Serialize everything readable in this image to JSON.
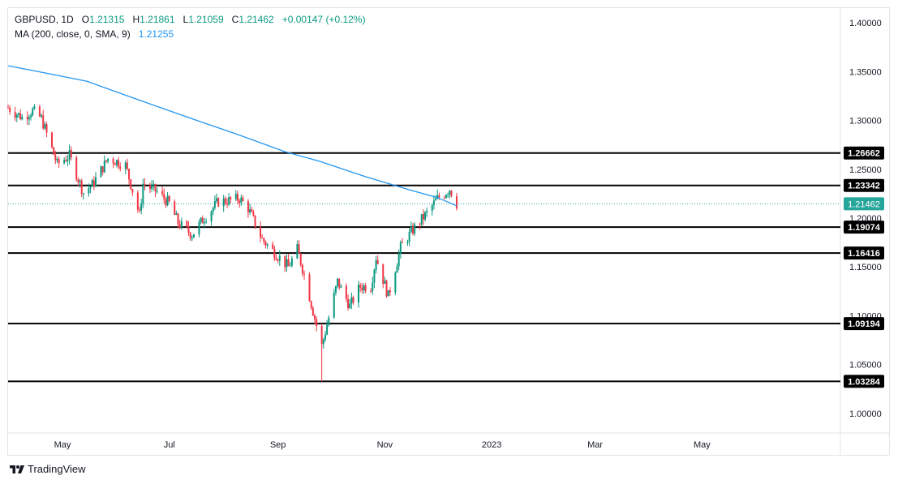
{
  "legend": {
    "symbol": "GBPUSD",
    "interval": "1D",
    "open_label": "O",
    "open": "1.21315",
    "high_label": "H",
    "high": "1.21861",
    "low_label": "L",
    "low": "1.21059",
    "close_label": "C",
    "close": "1.21462",
    "change": "+0.00147 (+0.12%)",
    "ma_label": "MA (200, close, 0, SMA, 9)",
    "ma_value": "1.21255"
  },
  "brand": {
    "name": "TradingView",
    "icon": "tradingview-logo-icon"
  },
  "colors": {
    "up": "#089981",
    "down": "#f23645",
    "ma": "#2196f3",
    "level": "#000000",
    "last": "#26a69a"
  },
  "chart_data": {
    "type": "candlestick",
    "y_range": [
      0.98,
      1.415
    ],
    "x_range": [
      "2022-03-31",
      "2023-07-19"
    ],
    "yticks": [
      "1.00000",
      "1.05000",
      "1.10000",
      "1.15000",
      "1.20000",
      "1.25000",
      "1.30000",
      "1.35000",
      "1.40000"
    ],
    "ytick_values": [
      1.0,
      1.05,
      1.1,
      1.15,
      1.2,
      1.25,
      1.3,
      1.35,
      1.4
    ],
    "xticks": [
      {
        "label": "May",
        "date": "2022-05-01"
      },
      {
        "label": "Jul",
        "date": "2022-07-01"
      },
      {
        "label": "Sep",
        "date": "2022-09-01"
      },
      {
        "label": "Nov",
        "date": "2022-11-01"
      },
      {
        "label": "2023",
        "date": "2023-01-01"
      },
      {
        "label": "Mar",
        "date": "2023-03-01"
      },
      {
        "label": "May",
        "date": "2023-05-01"
      }
    ],
    "levels": [
      {
        "label": "1.26662",
        "value": 1.26662
      },
      {
        "label": "1.23342",
        "value": 1.23342
      },
      {
        "label": "1.19074",
        "value": 1.19074
      },
      {
        "label": "1.16416",
        "value": 1.16416
      },
      {
        "label": "1.09194",
        "value": 1.09194
      },
      {
        "label": "1.03284",
        "value": 1.03284
      }
    ],
    "last_price": {
      "label": "1.21462",
      "value": 1.21462
    },
    "price_anchors": [
      [
        "2022-03-31",
        1.313
      ],
      [
        "2022-04-08",
        1.303
      ],
      [
        "2022-04-14",
        1.31
      ],
      [
        "2022-04-19",
        1.302
      ],
      [
        "2022-04-28",
        1.255
      ],
      [
        "2022-05-05",
        1.264
      ],
      [
        "2022-05-13",
        1.226
      ],
      [
        "2022-05-18",
        1.234
      ],
      [
        "2022-05-27",
        1.261
      ],
      [
        "2022-06-01",
        1.258
      ],
      [
        "2022-06-06",
        1.254
      ],
      [
        "2022-06-14",
        1.203
      ],
      [
        "2022-06-16",
        1.235
      ],
      [
        "2022-06-24",
        1.227
      ],
      [
        "2022-07-01",
        1.215
      ],
      [
        "2022-07-06",
        1.195
      ],
      [
        "2022-07-14",
        1.183
      ],
      [
        "2022-07-20",
        1.198
      ],
      [
        "2022-07-29",
        1.217
      ],
      [
        "2022-08-04",
        1.218
      ],
      [
        "2022-08-10",
        1.22
      ],
      [
        "2022-08-15",
        1.21
      ],
      [
        "2022-08-23",
        1.178
      ],
      [
        "2022-08-31",
        1.163
      ],
      [
        "2022-09-07",
        1.15
      ],
      [
        "2022-09-12",
        1.168
      ],
      [
        "2022-09-16",
        1.142
      ],
      [
        "2022-09-23",
        1.09
      ],
      [
        "2022-09-26",
        1.069
      ],
      [
        "2022-10-03",
        1.12
      ],
      [
        "2022-10-05",
        1.135
      ],
      [
        "2022-10-12",
        1.11
      ],
      [
        "2022-10-18",
        1.13
      ],
      [
        "2022-10-24",
        1.13
      ],
      [
        "2022-10-27",
        1.16
      ],
      [
        "2022-11-03",
        1.12
      ],
      [
        "2022-11-10",
        1.17
      ],
      [
        "2022-11-17",
        1.188
      ],
      [
        "2022-11-25",
        1.205
      ],
      [
        "2022-12-01",
        1.22
      ],
      [
        "2022-12-05",
        1.225
      ],
      [
        "2022-12-08",
        1.23
      ],
      [
        "2022-12-12",
        1.2146
      ]
    ],
    "ma_series": [
      [
        "2022-03-31",
        1.356
      ],
      [
        "2022-04-20",
        1.349
      ],
      [
        "2022-05-15",
        1.34
      ],
      [
        "2022-06-15",
        1.32
      ],
      [
        "2022-07-15",
        1.301
      ],
      [
        "2022-08-10",
        1.285
      ],
      [
        "2022-09-05",
        1.268
      ],
      [
        "2022-09-25",
        1.258
      ],
      [
        "2022-10-20",
        1.243
      ],
      [
        "2022-11-15",
        1.229
      ],
      [
        "2022-12-01",
        1.221
      ],
      [
        "2022-12-12",
        1.2126
      ]
    ]
  }
}
